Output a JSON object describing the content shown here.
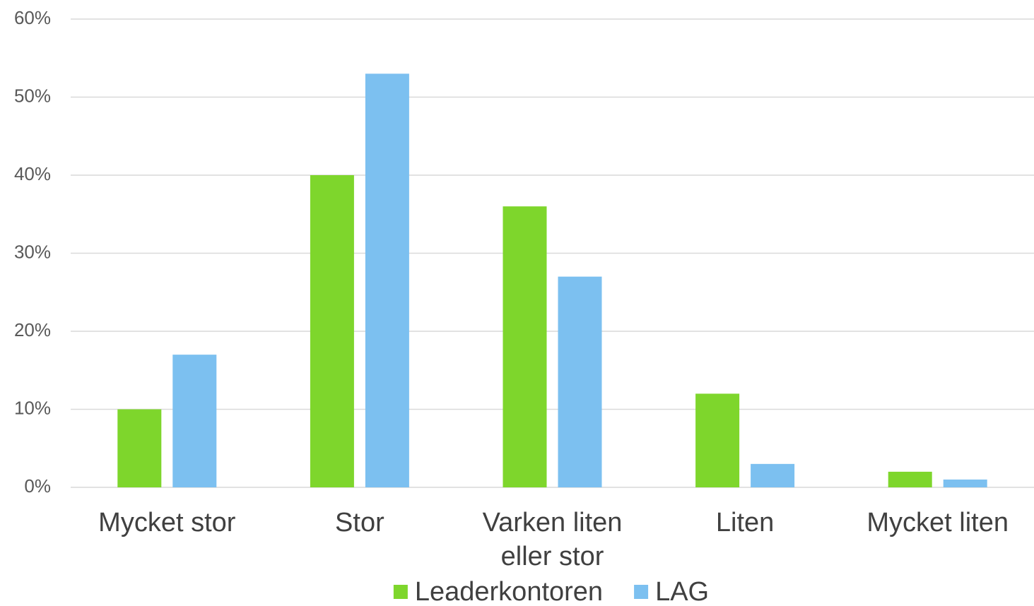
{
  "chart_data": {
    "type": "bar",
    "categories": [
      "Mycket stor",
      "Stor",
      "Varken liten eller stor",
      "Liten",
      "Mycket liten"
    ],
    "series": [
      {
        "name": "Leaderkontoren",
        "color": "#7ed62c",
        "values": [
          10,
          40,
          36,
          12,
          2
        ]
      },
      {
        "name": "LAG",
        "color": "#7cc0f0",
        "values": [
          17,
          53,
          27,
          3,
          1
        ]
      }
    ],
    "ylim": [
      0,
      60
    ],
    "yticks": [
      {
        "value": 0,
        "label": "0%"
      },
      {
        "value": 10,
        "label": "10%"
      },
      {
        "value": 20,
        "label": "20%"
      },
      {
        "value": 30,
        "label": "30%"
      },
      {
        "value": 40,
        "label": "40%"
      },
      {
        "value": 50,
        "label": "50%"
      },
      {
        "value": 60,
        "label": "60%"
      }
    ],
    "grid": true,
    "legend": "bottom"
  }
}
